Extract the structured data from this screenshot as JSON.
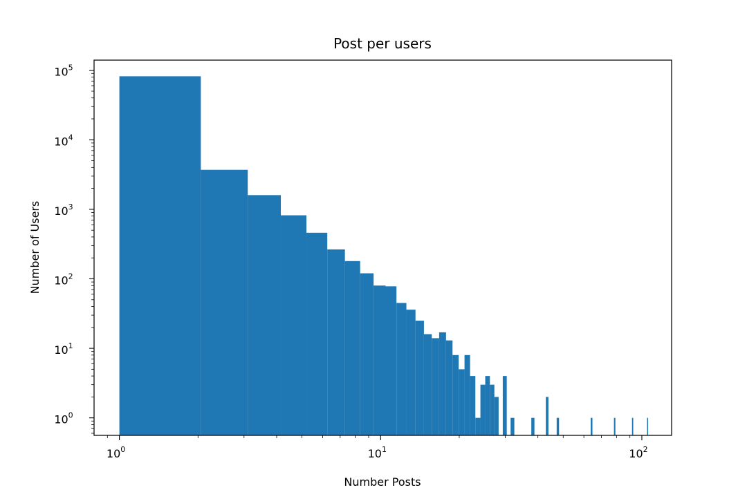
{
  "chart_data": {
    "type": "bar",
    "title": "Post per users",
    "xlabel": "Number Posts",
    "ylabel": "Number of Users",
    "xscale": "log",
    "yscale": "log",
    "xlim": [
      0.8,
      130
    ],
    "ylim": [
      0.56,
      140000
    ],
    "grid": false,
    "legend": "none",
    "bar_color": "#1f77b4",
    "x_ticks": [
      {
        "base": "10",
        "exp": "0",
        "value": 1
      },
      {
        "base": "10",
        "exp": "1",
        "value": 10
      },
      {
        "base": "10",
        "exp": "2",
        "value": 100
      }
    ],
    "y_ticks": [
      {
        "base": "10",
        "exp": "0",
        "value": 1
      },
      {
        "base": "10",
        "exp": "1",
        "value": 10
      },
      {
        "base": "10",
        "exp": "2",
        "value": 100
      },
      {
        "base": "10",
        "exp": "3",
        "value": 1000
      },
      {
        "base": "10",
        "exp": "4",
        "value": 10000
      },
      {
        "base": "10",
        "exp": "5",
        "value": 100000
      }
    ],
    "bins": [
      {
        "x0": 1.0,
        "x1": 2.05,
        "count": 82000
      },
      {
        "x0": 2.05,
        "x1": 3.1,
        "count": 3700
      },
      {
        "x0": 3.1,
        "x1": 4.15,
        "count": 1600
      },
      {
        "x0": 4.15,
        "x1": 5.2,
        "count": 820
      },
      {
        "x0": 5.2,
        "x1": 6.25,
        "count": 460
      },
      {
        "x0": 6.25,
        "x1": 7.3,
        "count": 265
      },
      {
        "x0": 7.3,
        "x1": 8.35,
        "count": 180
      },
      {
        "x0": 8.35,
        "x1": 9.4,
        "count": 120
      },
      {
        "x0": 9.4,
        "x1": 10.45,
        "count": 80
      },
      {
        "x0": 10.45,
        "x1": 11.5,
        "count": 78
      },
      {
        "x0": 11.5,
        "x1": 12.55,
        "count": 45
      },
      {
        "x0": 12.55,
        "x1": 13.6,
        "count": 36
      },
      {
        "x0": 13.6,
        "x1": 14.65,
        "count": 25
      },
      {
        "x0": 14.65,
        "x1": 15.7,
        "count": 16
      },
      {
        "x0": 15.7,
        "x1": 16.75,
        "count": 14
      },
      {
        "x0": 16.75,
        "x1": 17.8,
        "count": 17
      },
      {
        "x0": 17.8,
        "x1": 18.85,
        "count": 13
      },
      {
        "x0": 18.85,
        "x1": 19.9,
        "count": 8
      },
      {
        "x0": 19.9,
        "x1": 20.95,
        "count": 5
      },
      {
        "x0": 20.95,
        "x1": 22.0,
        "count": 8
      },
      {
        "x0": 22.0,
        "x1": 23.05,
        "count": 4
      },
      {
        "x0": 23.05,
        "x1": 24.1,
        "count": 1
      },
      {
        "x0": 24.1,
        "x1": 25.15,
        "count": 3
      },
      {
        "x0": 25.15,
        "x1": 26.2,
        "count": 4
      },
      {
        "x0": 26.2,
        "x1": 27.25,
        "count": 3
      },
      {
        "x0": 27.25,
        "x1": 28.3,
        "count": 2
      },
      {
        "x0": 29.35,
        "x1": 30.4,
        "count": 4
      },
      {
        "x0": 31.45,
        "x1": 32.5,
        "count": 1
      },
      {
        "x0": 37.75,
        "x1": 38.8,
        "count": 1
      },
      {
        "x0": 42.9,
        "x1": 43.9,
        "count": 2
      },
      {
        "x0": 47.2,
        "x1": 48.2,
        "count": 1
      },
      {
        "x0": 63.7,
        "x1": 64.7,
        "count": 1
      },
      {
        "x0": 78.2,
        "x1": 79.2,
        "count": 1
      },
      {
        "x0": 91.7,
        "x1": 92.7,
        "count": 1
      },
      {
        "x0": 104.7,
        "x1": 105.7,
        "count": 1
      }
    ]
  }
}
